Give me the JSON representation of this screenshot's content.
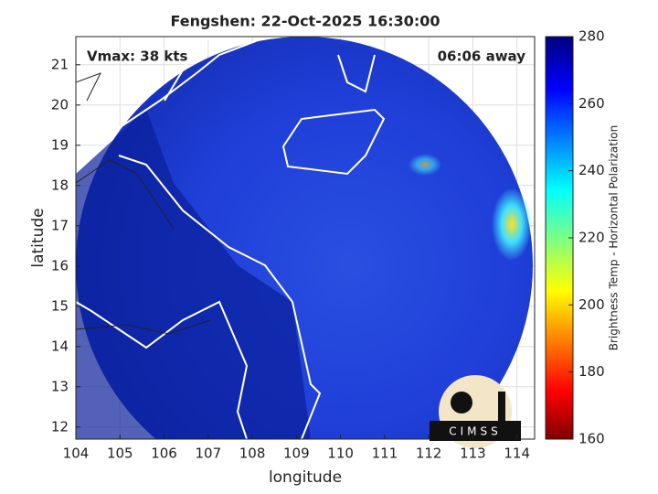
{
  "title": "Fengshen: 22-Oct-2025 16:30:00",
  "map": {
    "xlabel": "longitude",
    "ylabel": "latitude",
    "xlim": [
      104,
      114.4
    ],
    "ylim": [
      11.7,
      21.7
    ],
    "xticks": [
      104,
      105,
      106,
      107,
      108,
      109,
      110,
      111,
      112,
      113,
      114
    ],
    "yticks": [
      12,
      13,
      14,
      15,
      16,
      17,
      18,
      19,
      20,
      21
    ],
    "grid": true,
    "annotations": {
      "left": "Vmax: 38 kts",
      "right": "06:06 away"
    },
    "logo": "CIMSS"
  },
  "colorbar": {
    "label": "Brightness Temp - Horizontal Polarization",
    "lim": [
      160,
      280
    ],
    "ticks": [
      160,
      180,
      200,
      220,
      240,
      260,
      280
    ]
  }
}
